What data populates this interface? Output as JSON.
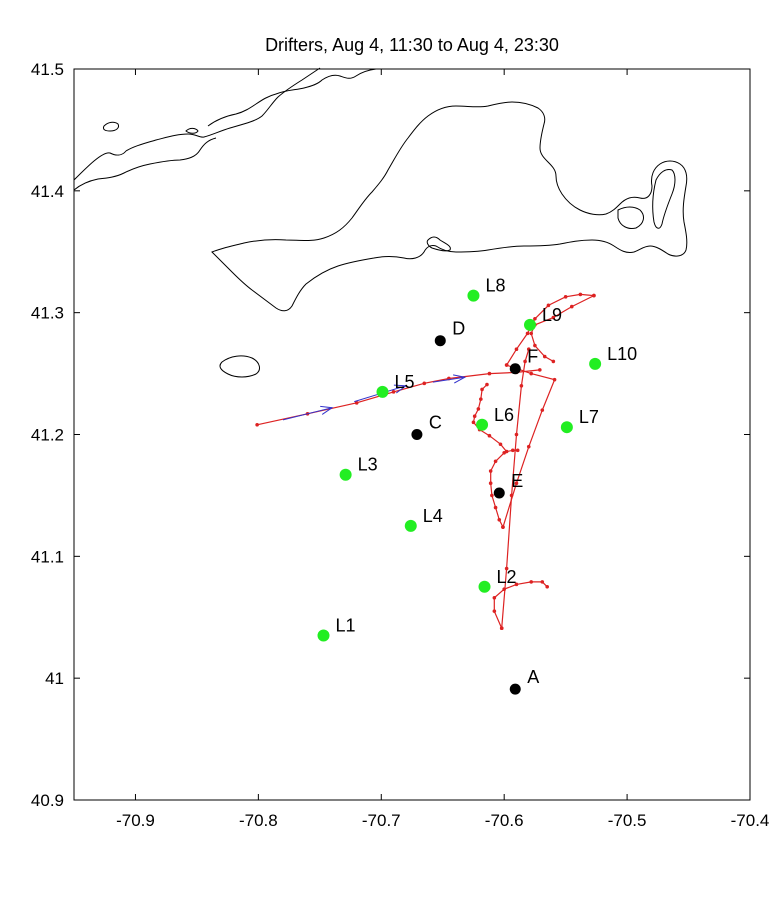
{
  "chart_data": {
    "type": "scatter",
    "title": "Drifters, Aug 4, 11:30 to Aug 4, 23:30",
    "xlabel": "",
    "ylabel": "",
    "xlim": [
      -70.95,
      -70.4
    ],
    "ylim": [
      40.9,
      41.5
    ],
    "x_ticks": [
      -70.9,
      -70.8,
      -70.7,
      -70.6,
      -70.5,
      -70.4
    ],
    "x_tick_labels": [
      "-70.9",
      "-70.8",
      "-70.7",
      "-70.6",
      "-70.5",
      "-70.4"
    ],
    "y_ticks": [
      40.9,
      41.0,
      41.1,
      41.2,
      41.3,
      41.4,
      41.5
    ],
    "y_tick_labels": [
      "40.9",
      "41",
      "41.1",
      "41.2",
      "41.3",
      "41.4",
      "41.5"
    ],
    "grid": false,
    "colors": {
      "mooring": "#000000",
      "drifter_station": "#22ee22",
      "track": "#dd2222",
      "velocity": "#3333cc",
      "coast": "#000000"
    },
    "moorings": [
      {
        "label": "A",
        "x": -70.591,
        "y": 40.991
      },
      {
        "label": "C",
        "x": -70.671,
        "y": 41.2
      },
      {
        "label": "D",
        "x": -70.652,
        "y": 41.277
      },
      {
        "label": "E",
        "x": -70.604,
        "y": 41.152
      },
      {
        "label": "F",
        "x": -70.591,
        "y": 41.254
      }
    ],
    "stations": [
      {
        "label": "L1",
        "x": -70.747,
        "y": 41.035
      },
      {
        "label": "L2",
        "x": -70.616,
        "y": 41.075
      },
      {
        "label": "L3",
        "x": -70.729,
        "y": 41.167
      },
      {
        "label": "L4",
        "x": -70.676,
        "y": 41.125
      },
      {
        "label": "L5",
        "x": -70.699,
        "y": 41.235
      },
      {
        "label": "L6",
        "x": -70.618,
        "y": 41.208
      },
      {
        "label": "L7",
        "x": -70.549,
        "y": 41.206
      },
      {
        "label": "L8",
        "x": -70.625,
        "y": 41.314
      },
      {
        "label": "L9",
        "x": -70.579,
        "y": 41.29
      },
      {
        "label": "L10",
        "x": -70.526,
        "y": 41.258
      }
    ],
    "tracks": [
      [
        [
          -70.801,
          41.208
        ],
        [
          -70.76,
          41.217
        ],
        [
          -70.72,
          41.226
        ],
        [
          -70.69,
          41.235
        ],
        [
          -70.665,
          41.242
        ],
        [
          -70.645,
          41.246
        ],
        [
          -70.612,
          41.25
        ],
        [
          -70.59,
          41.251
        ],
        [
          -70.571,
          41.253
        ]
      ],
      [
        [
          -70.602,
          41.041
        ],
        [
          -70.608,
          41.055
        ],
        [
          -70.608,
          41.066
        ],
        [
          -70.6,
          41.073
        ],
        [
          -70.59,
          41.077
        ],
        [
          -70.578,
          41.079
        ],
        [
          -70.569,
          41.079
        ],
        [
          -70.565,
          41.075
        ]
      ],
      [
        [
          -70.602,
          41.041
        ],
        [
          -70.598,
          41.09
        ],
        [
          -70.594,
          41.15
        ],
        [
          -70.59,
          41.2
        ],
        [
          -70.586,
          41.24
        ],
        [
          -70.583,
          41.26
        ],
        [
          -70.58,
          41.27
        ]
      ],
      [
        [
          -70.614,
          41.241
        ],
        [
          -70.618,
          41.237
        ],
        [
          -70.619,
          41.229
        ],
        [
          -70.621,
          41.221
        ],
        [
          -70.624,
          41.215
        ],
        [
          -70.625,
          41.21
        ],
        [
          -70.62,
          41.204
        ],
        [
          -70.612,
          41.199
        ],
        [
          -70.603,
          41.192
        ],
        [
          -70.598,
          41.186
        ],
        [
          -70.593,
          41.187
        ],
        [
          -70.589,
          41.187
        ]
      ],
      [
        [
          -70.6,
          41.185
        ],
        [
          -70.607,
          41.178
        ],
        [
          -70.611,
          41.17
        ],
        [
          -70.611,
          41.16
        ],
        [
          -70.61,
          41.15
        ],
        [
          -70.607,
          41.14
        ],
        [
          -70.604,
          41.13
        ],
        [
          -70.601,
          41.124
        ]
      ],
      [
        [
          -70.601,
          41.124
        ],
        [
          -70.59,
          41.16
        ],
        [
          -70.58,
          41.19
        ],
        [
          -70.569,
          41.22
        ],
        [
          -70.559,
          41.245
        ],
        [
          -70.578,
          41.25
        ],
        [
          -70.598,
          41.257
        ]
      ],
      [
        [
          -70.598,
          41.257
        ],
        [
          -70.59,
          41.27
        ],
        [
          -70.581,
          41.283
        ],
        [
          -70.575,
          41.295
        ],
        [
          -70.564,
          41.306
        ],
        [
          -70.55,
          41.313
        ],
        [
          -70.538,
          41.315
        ],
        [
          -70.527,
          41.314
        ]
      ],
      [
        [
          -70.527,
          41.314
        ],
        [
          -70.545,
          41.305
        ],
        [
          -70.56,
          41.296
        ],
        [
          -70.575,
          41.29
        ],
        [
          -70.578,
          41.283
        ],
        [
          -70.575,
          41.273
        ],
        [
          -70.567,
          41.264
        ],
        [
          -70.56,
          41.26
        ]
      ]
    ],
    "velocity_vectors": [
      [
        [
          -70.78,
          41.212
        ],
        [
          -70.74,
          41.222
        ]
      ],
      [
        [
          -70.722,
          41.227
        ],
        [
          -70.68,
          41.24
        ]
      ],
      [
        [
          -70.658,
          41.243
        ],
        [
          -70.632,
          41.247
        ]
      ]
    ]
  }
}
